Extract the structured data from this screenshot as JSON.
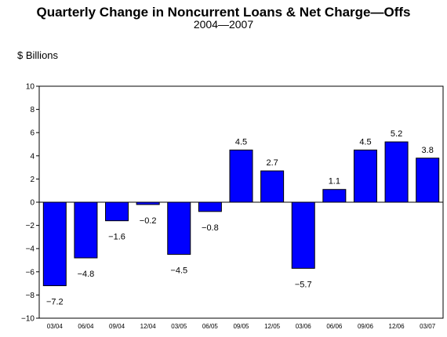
{
  "chart_data": {
    "type": "bar",
    "title": "Quarterly Change in Noncurrent Loans & Net Charge—Offs",
    "subtitle": "2004—2007",
    "ylabel": "$ Billions",
    "xlabel": "",
    "categories": [
      "03/04",
      "06/04",
      "09/04",
      "12/04",
      "03/05",
      "06/05",
      "09/05",
      "12/05",
      "03/06",
      "06/06",
      "09/06",
      "12/06",
      "03/07"
    ],
    "values": [
      -7.2,
      -4.8,
      -1.6,
      -0.2,
      -4.5,
      -0.8,
      4.5,
      2.7,
      -5.7,
      1.1,
      4.5,
      5.2,
      3.8
    ],
    "value_labels": [
      "−7.2",
      "−4.8",
      "−1.6",
      "−0.2",
      "−4.5",
      "−0.8",
      "4.5",
      "2.7",
      "−5.7",
      "1.1",
      "4.5",
      "5.2",
      "3.8"
    ],
    "ylim": [
      -10,
      10
    ],
    "yticks": [
      -10,
      -8,
      -6,
      -4,
      -2,
      0,
      2,
      4,
      6,
      8,
      10
    ],
    "ytick_labels": [
      "−10",
      "−8",
      "−6",
      "−4",
      "−2",
      "0",
      "2",
      "4",
      "6",
      "8",
      "10"
    ],
    "grid": false,
    "bar_color": "#0000ff"
  }
}
